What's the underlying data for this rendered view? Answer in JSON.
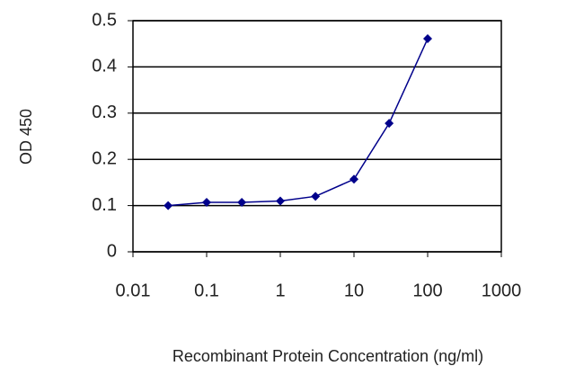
{
  "chart_data": {
    "type": "line",
    "x_label": "Recombinant Protein Concentration (ng/ml)",
    "y_label": "OD 450",
    "x": [
      0.03,
      0.1,
      0.3,
      1,
      3,
      10,
      30,
      100
    ],
    "series": [
      {
        "color": "#00008b",
        "values": [
          0.1,
          0.107,
          0.107,
          0.11,
          0.12,
          0.157,
          0.278,
          0.461
        ]
      }
    ],
    "xlim": [
      0.01,
      1000
    ],
    "xticks": [
      0.01,
      0.1,
      1,
      10,
      100,
      1000
    ],
    "xscale": "log",
    "ylim": [
      0,
      0.5
    ],
    "yticks": [
      0,
      0.1,
      0.2,
      0.3,
      0.4,
      0.5
    ],
    "grid": true
  }
}
